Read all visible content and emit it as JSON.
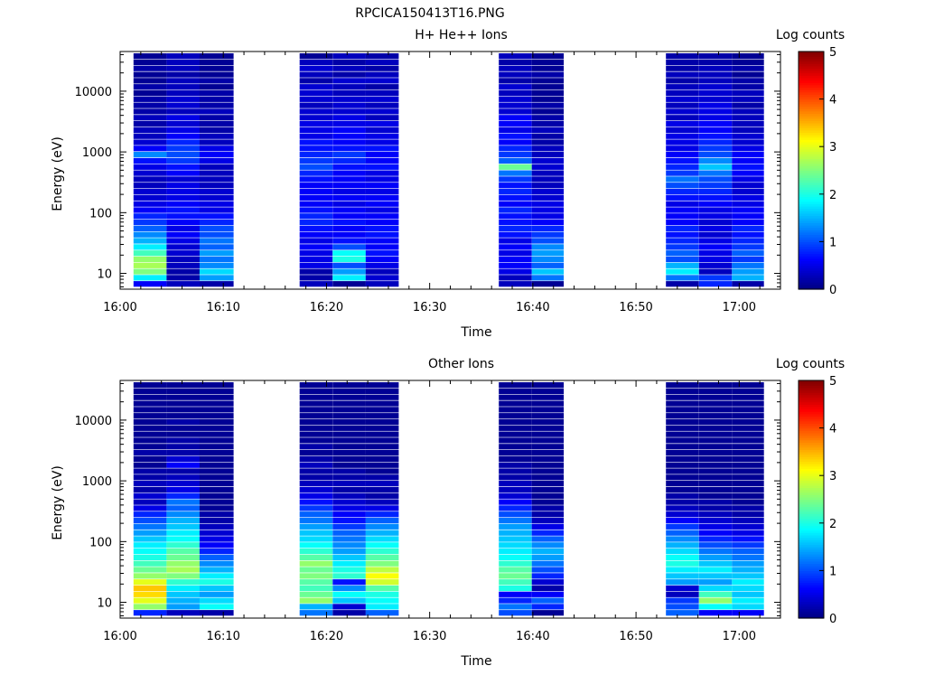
{
  "figure": {
    "filename": "RPCICA150413T16.PNG"
  },
  "chart_data": [
    {
      "type": "heatmap",
      "title": "H+ He++ Ions",
      "xlabel": "Time",
      "ylabel": "Energy (eV)",
      "x_ticks": [
        "16:00",
        "16:10",
        "16:20",
        "16:30",
        "16:40",
        "16:50",
        "17:00"
      ],
      "xlim_minutes": [
        0,
        64
      ],
      "yscale": "log",
      "ylim": [
        5.5,
        45000
      ],
      "y_ticks": [
        10,
        100,
        1000,
        10000
      ],
      "colorbar": {
        "label": "Log counts",
        "range": [
          0,
          5
        ],
        "ticks": [
          0,
          1,
          2,
          3,
          4,
          5
        ]
      },
      "columns": [
        {
          "start": 1.3,
          "end": 4.5,
          "levels": [
            0.6,
            1.8,
            2.5,
            2.7,
            2.6,
            2.2,
            1.8,
            1.5,
            1.3,
            1.1,
            0.9,
            0.8,
            0.6,
            0.5,
            0.4,
            0.4,
            0.3,
            0.3,
            0.4,
            0.5,
            0.7,
            1.3,
            0.6,
            0.4,
            0.3,
            0.3,
            0.2,
            0.3,
            0.2,
            0.2,
            0.2,
            0.1,
            0.2,
            0.1,
            0.1,
            0.2,
            0.1,
            0.1
          ]
        },
        {
          "start": 4.5,
          "end": 7.7,
          "levels": [
            0.3,
            0.2,
            0.2,
            0.3,
            0.3,
            0.4,
            0.4,
            0.5,
            0.6,
            0.5,
            0.6,
            0.7,
            0.7,
            0.6,
            0.5,
            0.5,
            0.5,
            0.4,
            0.6,
            0.7,
            0.9,
            1.0,
            0.9,
            0.8,
            0.6,
            0.5,
            0.4,
            0.5,
            0.3,
            0.4,
            0.4,
            0.3,
            0.3,
            0.3,
            0.2,
            0.3,
            0.3,
            0.3
          ]
        },
        {
          "start": 7.7,
          "end": 11.0,
          "levels": [
            0.2,
            1.4,
            1.7,
            1.3,
            1.2,
            1.4,
            1.1,
            1.2,
            1.0,
            1.0,
            0.8,
            0.7,
            0.5,
            0.5,
            0.4,
            0.4,
            0.3,
            0.3,
            0.3,
            0.3,
            0.5,
            0.6,
            0.5,
            0.3,
            0.3,
            0.2,
            0.2,
            0.2,
            0.3,
            0.2,
            0.2,
            0.2,
            0.1,
            0.2,
            0.1,
            0.1,
            0.1,
            0.1
          ]
        },
        {
          "start": 17.4,
          "end": 20.6,
          "levels": [
            0.3,
            0.2,
            0.2,
            0.5,
            0.5,
            0.5,
            0.6,
            0.5,
            0.6,
            0.7,
            0.8,
            0.8,
            0.7,
            0.6,
            0.6,
            0.6,
            0.6,
            0.7,
            0.8,
            1.0,
            0.9,
            0.8,
            0.7,
            0.7,
            0.5,
            0.5,
            0.5,
            0.4,
            0.4,
            0.3,
            0.4,
            0.4,
            0.4,
            0.2,
            0.3,
            0.4,
            0.3,
            0.1
          ]
        },
        {
          "start": 20.6,
          "end": 23.8,
          "levels": [
            0.1,
            1.8,
            1.4,
            1.0,
            2.0,
            1.9,
            1.0,
            0.7,
            0.6,
            0.6,
            0.7,
            0.6,
            0.6,
            0.5,
            0.6,
            0.5,
            0.6,
            0.6,
            0.6,
            0.7,
            0.8,
            0.9,
            0.7,
            0.6,
            0.6,
            0.6,
            0.5,
            0.5,
            0.4,
            0.4,
            0.4,
            0.3,
            0.3,
            0.4,
            0.2,
            0.3,
            0.2,
            0.3
          ]
        },
        {
          "start": 23.8,
          "end": 27.0,
          "levels": [
            0.3,
            0.4,
            0.3,
            0.5,
            0.6,
            0.7,
            0.6,
            0.6,
            0.7,
            0.7,
            0.6,
            0.6,
            0.5,
            0.6,
            0.6,
            0.5,
            0.6,
            0.5,
            0.5,
            0.7,
            0.6,
            0.6,
            0.7,
            0.5,
            0.5,
            0.4,
            0.5,
            0.3,
            0.4,
            0.3,
            0.4,
            0.3,
            0.2,
            0.4,
            0.3,
            0.2,
            0.3,
            0.2
          ]
        },
        {
          "start": 36.7,
          "end": 39.9,
          "levels": [
            0.3,
            0.3,
            0.5,
            0.6,
            0.6,
            0.5,
            0.6,
            0.5,
            0.7,
            0.8,
            0.7,
            0.7,
            0.8,
            0.6,
            0.7,
            0.8,
            0.7,
            0.9,
            1.2,
            2.4,
            1.1,
            0.9,
            0.8,
            0.6,
            0.7,
            0.5,
            0.6,
            0.6,
            0.4,
            0.4,
            0.4,
            0.3,
            0.4,
            0.2,
            0.3,
            0.3,
            0.2,
            0.3
          ]
        },
        {
          "start": 39.9,
          "end": 43.0,
          "levels": [
            0.1,
            1.2,
            1.6,
            1.1,
            1.3,
            1.4,
            1.3,
            1.0,
            0.9,
            0.8,
            0.6,
            0.5,
            0.5,
            0.5,
            0.4,
            0.4,
            0.3,
            0.3,
            0.3,
            0.4,
            0.4,
            0.3,
            0.3,
            0.2,
            0.2,
            0.3,
            0.2,
            0.2,
            0.1,
            0.2,
            0.1,
            0.1,
            0.1,
            0.1,
            0.2,
            0.1,
            0.1,
            0.1
          ]
        },
        {
          "start": 52.9,
          "end": 56.1,
          "levels": [
            0.2,
            1.2,
            1.8,
            1.5,
            1.0,
            1.1,
            0.9,
            0.8,
            0.7,
            0.8,
            0.6,
            0.6,
            0.6,
            0.5,
            0.7,
            0.8,
            1.0,
            1.2,
            0.9,
            0.8,
            0.7,
            0.6,
            0.5,
            0.5,
            0.5,
            0.4,
            0.5,
            0.3,
            0.4,
            0.3,
            0.4,
            0.3,
            0.3,
            0.2,
            0.3,
            0.2,
            0.2,
            0.2
          ]
        },
        {
          "start": 56.1,
          "end": 59.3,
          "levels": [
            0.8,
            0.9,
            0.3,
            0.4,
            0.5,
            0.5,
            0.6,
            0.5,
            0.4,
            0.5,
            0.4,
            0.5,
            0.5,
            0.6,
            0.7,
            0.8,
            0.9,
            1.0,
            1.2,
            1.6,
            1.3,
            1.0,
            0.9,
            0.8,
            0.7,
            0.6,
            0.6,
            0.5,
            0.5,
            0.5,
            0.4,
            0.4,
            0.4,
            0.3,
            0.3,
            0.3,
            0.2,
            0.2
          ]
        },
        {
          "start": 59.3,
          "end": 62.4,
          "levels": [
            0.2,
            1.5,
            1.4,
            1.2,
            0.9,
            1.1,
            0.9,
            0.8,
            0.7,
            0.8,
            0.6,
            0.6,
            0.6,
            0.5,
            0.5,
            0.4,
            0.4,
            0.5,
            0.6,
            0.7,
            0.6,
            0.6,
            0.5,
            0.4,
            0.4,
            0.3,
            0.3,
            0.3,
            0.3,
            0.2,
            0.3,
            0.3,
            0.2,
            0.2,
            0.1,
            0.2,
            0.1,
            0.1
          ]
        }
      ]
    },
    {
      "type": "heatmap",
      "title": "Other Ions",
      "xlabel": "Time",
      "ylabel": "Energy (eV)",
      "x_ticks": [
        "16:00",
        "16:10",
        "16:20",
        "16:30",
        "16:40",
        "16:50",
        "17:00"
      ],
      "xlim_minutes": [
        0,
        64
      ],
      "yscale": "log",
      "ylim": [
        5.5,
        45000
      ],
      "y_ticks": [
        10,
        100,
        1000,
        10000
      ],
      "colorbar": {
        "label": "Log counts",
        "range": [
          0,
          5
        ],
        "ticks": [
          0,
          1,
          2,
          3,
          4,
          5
        ]
      },
      "columns": [
        {
          "start": 1.3,
          "end": 4.5,
          "levels": [
            0.8,
            2.6,
            3.0,
            3.3,
            3.4,
            3.0,
            2.6,
            2.4,
            2.2,
            2.0,
            1.9,
            1.8,
            1.6,
            1.4,
            1.2,
            1.0,
            0.8,
            0.5,
            0.3,
            0.4,
            0.2,
            0.3,
            0.2,
            0.2,
            0.1,
            0.1,
            0.2,
            0.1,
            0.1,
            0.1,
            0.1,
            0.1,
            0.1,
            0.1,
            0.1,
            0.1,
            0.1,
            0.1
          ]
        },
        {
          "start": 4.5,
          "end": 7.7,
          "levels": [
            0.3,
            1.4,
            1.5,
            1.6,
            1.8,
            2.1,
            2.5,
            2.7,
            2.6,
            2.4,
            2.3,
            2.1,
            1.9,
            1.8,
            1.6,
            1.5,
            1.3,
            1.1,
            1.2,
            0.8,
            0.5,
            0.4,
            0.3,
            0.2,
            0.6,
            0.4,
            0.2,
            0.2,
            0.2,
            0.1,
            0.1,
            0.2,
            0.1,
            0.1,
            0.1,
            0.1,
            0.1,
            0.1
          ]
        },
        {
          "start": 7.7,
          "end": 11.0,
          "levels": [
            0.2,
            1.9,
            1.7,
            1.4,
            1.6,
            2.0,
            1.8,
            1.5,
            1.3,
            1.1,
            0.8,
            0.6,
            0.5,
            0.4,
            0.3,
            0.2,
            0.2,
            0.1,
            0.1,
            0.1,
            0.1,
            0.1,
            0.1,
            0.1,
            0.1,
            0.1,
            0.1,
            0.1,
            0.1,
            0.1,
            0.1,
            0.1,
            0.1,
            0.1,
            0.1,
            0.1,
            0.1,
            0.1
          ]
        },
        {
          "start": 17.4,
          "end": 20.6,
          "levels": [
            1.2,
            1.5,
            2.6,
            2.4,
            2.2,
            2.3,
            2.5,
            2.4,
            2.6,
            2.3,
            2.1,
            1.9,
            1.7,
            1.6,
            1.4,
            1.2,
            1.1,
            0.9,
            0.7,
            0.5,
            0.4,
            0.3,
            0.2,
            0.2,
            0.3,
            0.2,
            0.1,
            0.2,
            0.1,
            0.1,
            0.1,
            0.1,
            0.1,
            0.1,
            0.1,
            0.1,
            0.1,
            0.1
          ]
        },
        {
          "start": 20.6,
          "end": 23.8,
          "levels": [
            0.2,
            0.4,
            1.6,
            1.9,
            1.3,
            0.7,
            2.1,
            2.0,
            1.8,
            1.6,
            1.4,
            1.3,
            1.2,
            1.1,
            0.9,
            0.7,
            0.6,
            0.5,
            0.4,
            0.3,
            0.2,
            0.3,
            0.2,
            0.2,
            0.1,
            0.1,
            0.1,
            0.1,
            0.1,
            0.1,
            0.1,
            0.1,
            0.1,
            0.1,
            0.1,
            0.1,
            0.1,
            0.1
          ]
        },
        {
          "start": 23.8,
          "end": 27.0,
          "levels": [
            1.1,
            1.8,
            1.9,
            2.0,
            2.3,
            2.9,
            3.1,
            2.8,
            2.5,
            2.3,
            2.1,
            1.9,
            1.7,
            1.5,
            1.3,
            1.1,
            0.8,
            0.5,
            0.3,
            0.2,
            0.2,
            0.3,
            0.2,
            0.1,
            0.1,
            0.1,
            0.1,
            0.1,
            0.1,
            0.1,
            0.1,
            0.1,
            0.1,
            0.1,
            0.1,
            0.1,
            0.1,
            0.1
          ]
        },
        {
          "start": 36.7,
          "end": 39.9,
          "levels": [
            1.0,
            1.2,
            0.8,
            0.6,
            2.0,
            2.2,
            2.4,
            2.3,
            2.1,
            1.9,
            1.8,
            1.7,
            1.6,
            1.5,
            1.4,
            1.2,
            1.0,
            0.8,
            0.6,
            0.4,
            0.3,
            0.3,
            0.2,
            0.2,
            0.2,
            0.1,
            0.1,
            0.1,
            0.1,
            0.1,
            0.1,
            0.1,
            0.1,
            0.1,
            0.1,
            0.1,
            0.1,
            0.1
          ]
        },
        {
          "start": 39.9,
          "end": 43.0,
          "levels": [
            0.1,
            0.8,
            1.1,
            0.6,
            0.2,
            0.4,
            0.8,
            1.0,
            1.2,
            1.4,
            1.5,
            1.3,
            1.1,
            0.8,
            0.5,
            0.3,
            0.2,
            0.2,
            0.1,
            0.1,
            0.1,
            0.1,
            0.1,
            0.1,
            0.1,
            0.1,
            0.1,
            0.1,
            0.1,
            0.1,
            0.1,
            0.1,
            0.1,
            0.1,
            0.1,
            0.1,
            0.1,
            0.1
          ]
        },
        {
          "start": 52.9,
          "end": 56.1,
          "levels": [
            1.1,
            1.0,
            0.9,
            0.3,
            0.4,
            1.4,
            1.6,
            1.8,
            2.0,
            1.9,
            1.7,
            1.5,
            1.3,
            1.1,
            0.9,
            0.6,
            0.4,
            0.3,
            0.2,
            0.2,
            0.1,
            0.1,
            0.1,
            0.1,
            0.1,
            0.1,
            0.1,
            0.1,
            0.1,
            0.1,
            0.1,
            0.1,
            0.1,
            0.1,
            0.1,
            0.1,
            0.1,
            0.1
          ]
        },
        {
          "start": 56.1,
          "end": 59.3,
          "levels": [
            0.6,
            1.9,
            2.6,
            2.2,
            1.7,
            1.4,
            1.6,
            1.8,
            1.6,
            1.4,
            1.2,
            1.0,
            0.8,
            0.6,
            0.5,
            0.4,
            0.3,
            0.2,
            0.2,
            0.1,
            0.1,
            0.1,
            0.1,
            0.1,
            0.1,
            0.1,
            0.1,
            0.1,
            0.1,
            0.1,
            0.1,
            0.1,
            0.1,
            0.1,
            0.1,
            0.1,
            0.1,
            0.1
          ]
        },
        {
          "start": 59.3,
          "end": 62.4,
          "levels": [
            0.6,
            1.7,
            1.8,
            1.6,
            1.7,
            1.8,
            1.6,
            1.5,
            1.4,
            1.2,
            1.1,
            0.9,
            0.7,
            0.5,
            0.4,
            0.3,
            0.2,
            0.2,
            0.1,
            0.1,
            0.1,
            0.1,
            0.1,
            0.1,
            0.1,
            0.1,
            0.1,
            0.1,
            0.1,
            0.1,
            0.1,
            0.1,
            0.1,
            0.1,
            0.1,
            0.1,
            0.1,
            0.1
          ]
        }
      ]
    }
  ]
}
